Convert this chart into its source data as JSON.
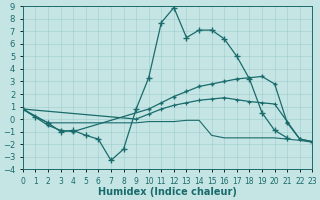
{
  "bg_color": "#c5e5e5",
  "grid_color": "#a0cccc",
  "line_color": "#1a6b6b",
  "xlabel": "Humidex (Indice chaleur)",
  "xlim": [
    0,
    23
  ],
  "ylim": [
    -4,
    9
  ],
  "xticks": [
    0,
    1,
    2,
    3,
    4,
    5,
    6,
    7,
    8,
    9,
    10,
    11,
    12,
    13,
    14,
    15,
    16,
    17,
    18,
    19,
    20,
    21,
    22,
    23
  ],
  "yticks": [
    -4,
    -3,
    -2,
    -1,
    0,
    1,
    2,
    3,
    4,
    5,
    6,
    7,
    8,
    9
  ],
  "series": [
    {
      "x": [
        0,
        1,
        2,
        3,
        4,
        5,
        6,
        7,
        8,
        9,
        10,
        11,
        12,
        13,
        14,
        15,
        16,
        17,
        18,
        19,
        20,
        21
      ],
      "y": [
        0.8,
        0.2,
        -0.3,
        -1.0,
        -0.9,
        -1.3,
        -1.6,
        -3.3,
        -2.4,
        0.8,
        3.3,
        7.7,
        8.9,
        6.5,
        7.1,
        7.1,
        6.4,
        5.0,
        3.2,
        0.5,
        -0.9,
        -1.5
      ],
      "lw": 0.9,
      "ls": "-",
      "marker": "+",
      "ms": 4,
      "mew": 1.0
    },
    {
      "x": [
        0,
        2,
        3,
        4,
        10,
        11,
        12,
        13,
        14,
        15,
        16,
        17,
        18,
        19,
        20,
        21,
        22,
        23
      ],
      "y": [
        0.8,
        -0.5,
        -0.9,
        -1.0,
        0.8,
        1.3,
        1.8,
        2.2,
        2.6,
        2.8,
        3.0,
        3.2,
        3.3,
        3.4,
        2.8,
        -0.3,
        -1.6,
        -1.8
      ],
      "lw": 0.9,
      "ls": "-",
      "marker": "+",
      "ms": 3.5,
      "mew": 1.0
    },
    {
      "x": [
        0,
        9,
        10,
        11,
        12,
        13,
        14,
        15,
        16,
        17,
        18,
        19,
        20,
        21,
        22,
        23
      ],
      "y": [
        0.8,
        0.0,
        0.4,
        0.8,
        1.1,
        1.3,
        1.5,
        1.6,
        1.7,
        1.55,
        1.4,
        1.3,
        1.2,
        -0.2,
        -1.6,
        -1.8
      ],
      "lw": 0.9,
      "ls": "-",
      "marker": "+",
      "ms": 3,
      "mew": 0.8
    },
    {
      "x": [
        0,
        2,
        9,
        10,
        11,
        12,
        13,
        14,
        15,
        16,
        17,
        18,
        19,
        20,
        22,
        23
      ],
      "y": [
        0.8,
        -0.3,
        -0.3,
        -0.2,
        -0.2,
        -0.2,
        -0.1,
        -0.1,
        -1.3,
        -1.5,
        -1.5,
        -1.5,
        -1.5,
        -1.5,
        -1.7,
        -1.85
      ],
      "lw": 0.8,
      "ls": "-",
      "marker": null,
      "ms": 0,
      "mew": 0
    }
  ]
}
